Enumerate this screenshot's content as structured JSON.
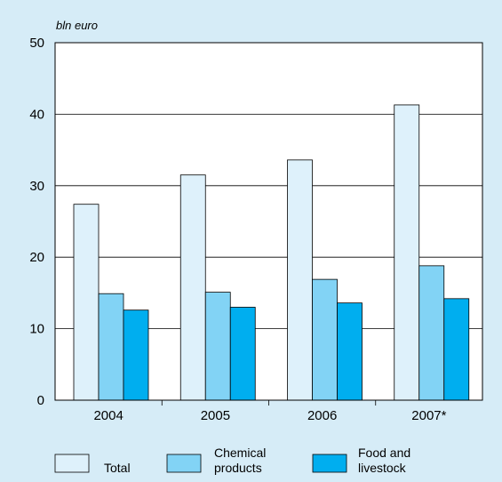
{
  "chart_data": {
    "type": "bar",
    "unit_label": "bln euro",
    "categories": [
      "2004",
      "2005",
      "2006",
      "2007*"
    ],
    "series": [
      {
        "name": "Total",
        "values": [
          27.4,
          31.5,
          33.6,
          41.3
        ],
        "color": "#def1fb"
      },
      {
        "name": "Chemical products",
        "values": [
          14.9,
          15.1,
          16.9,
          18.8
        ],
        "color": "#82d3f5"
      },
      {
        "name": "Food and livestock",
        "values": [
          12.6,
          13.0,
          13.6,
          14.2
        ],
        "color": "#00aeef"
      }
    ],
    "ylim": [
      0,
      50
    ],
    "yticks": [
      0,
      10,
      20,
      30,
      40,
      50
    ],
    "grid": true,
    "legend_position": "bottom",
    "legend": [
      {
        "lines": [
          "Total"
        ]
      },
      {
        "lines": [
          "Chemical",
          "products"
        ]
      },
      {
        "lines": [
          "Food and",
          "livestock"
        ]
      }
    ],
    "plot_background": "#ffffff",
    "page_background": "#d6ecf7"
  }
}
